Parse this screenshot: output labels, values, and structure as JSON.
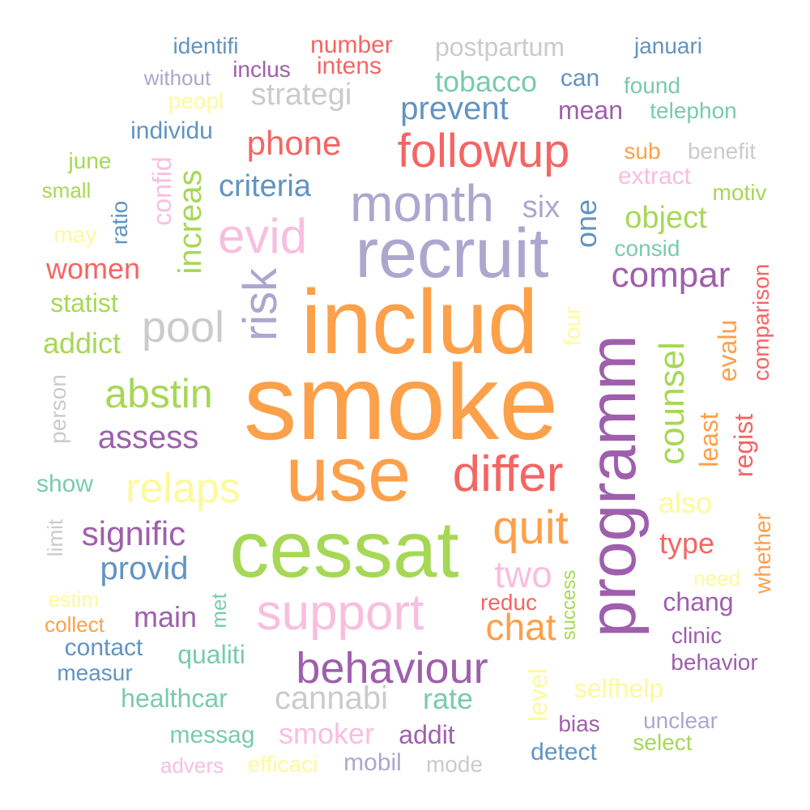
{
  "palette": {
    "orange": "#fda04a",
    "purple": "#9f5fad",
    "green": "#a6d855",
    "pink": "#f9bedf",
    "lavender": "#aea6ce",
    "red": "#f56563",
    "blue": "#6194c2",
    "teal": "#79cbad",
    "gray": "#cbcbcb",
    "yellow": "#fef99a"
  },
  "words": [
    {
      "text": "smoke",
      "color": "orange"
    },
    {
      "text": "includ",
      "color": "orange"
    },
    {
      "text": "cessat",
      "color": "green"
    },
    {
      "text": "use",
      "color": "orange"
    },
    {
      "text": "recruit",
      "color": "lavender"
    },
    {
      "text": "programm",
      "color": "purple"
    },
    {
      "text": "differ",
      "color": "red"
    },
    {
      "text": "support",
      "color": "pink"
    },
    {
      "text": "month",
      "color": "lavender"
    },
    {
      "text": "followup",
      "color": "red"
    },
    {
      "text": "behaviour",
      "color": "purple"
    },
    {
      "text": "risk",
      "color": "lavender"
    },
    {
      "text": "evid",
      "color": "pink"
    },
    {
      "text": "relaps",
      "color": "yellow"
    },
    {
      "text": "quit",
      "color": "orange"
    },
    {
      "text": "counsel",
      "color": "green"
    },
    {
      "text": "abstin",
      "color": "green"
    },
    {
      "text": "pool",
      "color": "gray"
    },
    {
      "text": "chat",
      "color": "orange"
    },
    {
      "text": "two",
      "color": "pink"
    },
    {
      "text": "compar",
      "color": "purple"
    },
    {
      "text": "signific",
      "color": "purple"
    },
    {
      "text": "phone",
      "color": "red"
    },
    {
      "text": "prevent",
      "color": "blue"
    },
    {
      "text": "cannabi",
      "color": "gray"
    },
    {
      "text": "increas",
      "color": "green"
    },
    {
      "text": "provid",
      "color": "blue"
    },
    {
      "text": "assess",
      "color": "purple"
    },
    {
      "text": "criteria",
      "color": "blue"
    },
    {
      "text": "strategi",
      "color": "gray"
    },
    {
      "text": "object",
      "color": "green"
    },
    {
      "text": "women",
      "color": "red"
    },
    {
      "text": "tobacco",
      "color": "teal"
    },
    {
      "text": "six",
      "color": "lavender"
    },
    {
      "text": "one",
      "color": "blue"
    },
    {
      "text": "smoker",
      "color": "pink"
    },
    {
      "text": "rate",
      "color": "teal"
    },
    {
      "text": "postpartum",
      "color": "gray"
    },
    {
      "text": "addict",
      "color": "green"
    },
    {
      "text": "main",
      "color": "purple"
    },
    {
      "text": "type",
      "color": "red"
    },
    {
      "text": "also",
      "color": "yellow"
    },
    {
      "text": "evalu",
      "color": "orange"
    },
    {
      "text": "least",
      "color": "orange"
    },
    {
      "text": "regist",
      "color": "red"
    },
    {
      "text": "qualiti",
      "color": "teal"
    },
    {
      "text": "healthcar",
      "color": "teal"
    },
    {
      "text": "mean",
      "color": "purple"
    },
    {
      "text": "selfhelp",
      "color": "yellow"
    },
    {
      "text": "level",
      "color": "yellow"
    },
    {
      "text": "chang",
      "color": "purple"
    },
    {
      "text": "number",
      "color": "red"
    },
    {
      "text": "statist",
      "color": "green"
    },
    {
      "text": "individu",
      "color": "blue"
    },
    {
      "text": "confid",
      "color": "pink"
    },
    {
      "text": "addit",
      "color": "purple"
    },
    {
      "text": "comparison",
      "color": "red"
    },
    {
      "text": "intens",
      "color": "red"
    },
    {
      "text": "contact",
      "color": "blue"
    },
    {
      "text": "extract",
      "color": "pink"
    },
    {
      "text": "whether",
      "color": "orange"
    },
    {
      "text": "telephon",
      "color": "teal"
    },
    {
      "text": "can",
      "color": "blue"
    },
    {
      "text": "messag",
      "color": "teal"
    },
    {
      "text": "measur",
      "color": "blue"
    },
    {
      "text": "clinic",
      "color": "purple"
    },
    {
      "text": "behavior",
      "color": "purple"
    },
    {
      "text": "mobil",
      "color": "lavender"
    },
    {
      "text": "detect",
      "color": "blue"
    },
    {
      "text": "mode",
      "color": "gray"
    },
    {
      "text": "show",
      "color": "teal"
    },
    {
      "text": "person",
      "color": "gray"
    },
    {
      "text": "ratio",
      "color": "blue"
    },
    {
      "text": "reduc",
      "color": "red"
    },
    {
      "text": "efficaci",
      "color": "yellow"
    },
    {
      "text": "bias",
      "color": "purple"
    },
    {
      "text": "select",
      "color": "green"
    },
    {
      "text": "unclear",
      "color": "lavender"
    },
    {
      "text": "consid",
      "color": "teal"
    },
    {
      "text": "sub",
      "color": "orange"
    },
    {
      "text": "benefit",
      "color": "gray"
    },
    {
      "text": "inclus",
      "color": "purple"
    },
    {
      "text": "identifi",
      "color": "blue"
    },
    {
      "text": "januari",
      "color": "blue"
    },
    {
      "text": "found",
      "color": "teal"
    },
    {
      "text": "motiv",
      "color": "green"
    },
    {
      "text": "four",
      "color": "yellow"
    },
    {
      "text": "success",
      "color": "green"
    },
    {
      "text": "need",
      "color": "yellow"
    },
    {
      "text": "met",
      "color": "teal"
    },
    {
      "text": "limit",
      "color": "gray"
    },
    {
      "text": "without",
      "color": "lavender"
    },
    {
      "text": "peopl",
      "color": "yellow"
    },
    {
      "text": "june",
      "color": "green"
    },
    {
      "text": "small",
      "color": "green"
    },
    {
      "text": "may",
      "color": "yellow"
    },
    {
      "text": "estim",
      "color": "yellow"
    },
    {
      "text": "collect",
      "color": "orange"
    },
    {
      "text": "advers",
      "color": "pink"
    }
  ]
}
